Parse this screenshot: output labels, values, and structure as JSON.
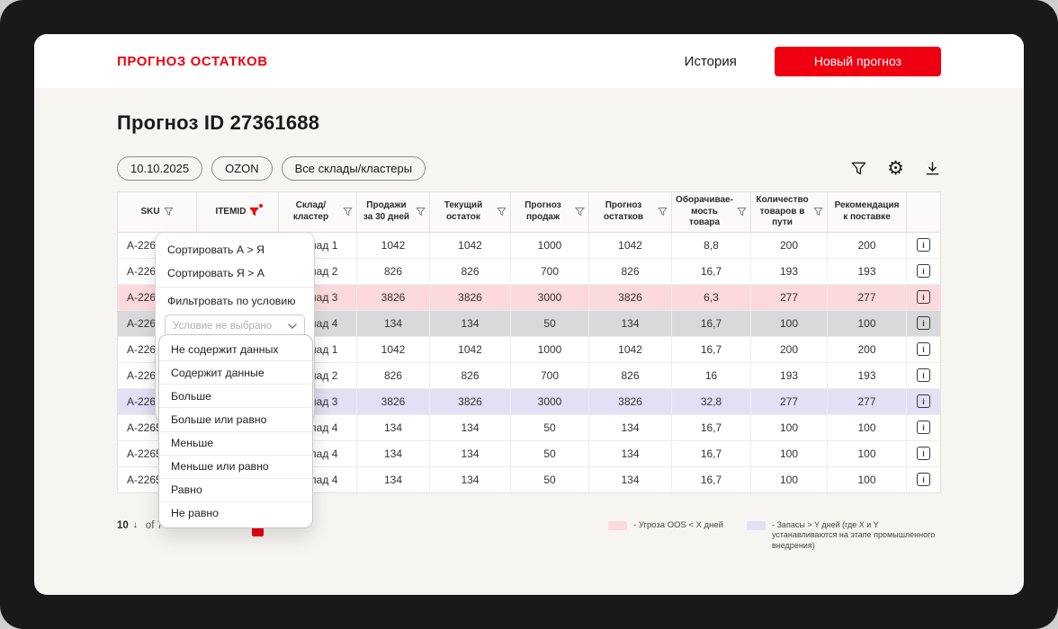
{
  "header": {
    "logo": "ПРОГНОЗ ОСТАТКОВ",
    "history": "История",
    "new_forecast": "Новый прогноз"
  },
  "page": {
    "title": "Прогноз ID 27361688",
    "filter_chips": [
      "10.10.2025",
      "OZON",
      "Все склады/кластеры"
    ]
  },
  "icons": {
    "toolbar": [
      "funnel-icon",
      "gear-icon",
      "download-icon"
    ],
    "gear_glyph": "⚙",
    "row_info": "i"
  },
  "table": {
    "columns": [
      {
        "label": "SKU",
        "filter": true,
        "active": false
      },
      {
        "label": "ITEMID",
        "filter": true,
        "active": true
      },
      {
        "label": "Склад/кластер",
        "filter": true,
        "active": false
      },
      {
        "label": "Продажи за 30 дней",
        "filter": true,
        "active": false
      },
      {
        "label": "Текущий остаток",
        "filter": true,
        "active": false
      },
      {
        "label": "Прогноз продаж",
        "filter": true,
        "active": false
      },
      {
        "label": "Прогноз остатков",
        "filter": true,
        "active": false
      },
      {
        "label": "Оборачивае-мость товара",
        "filter": true,
        "active": false
      },
      {
        "label": "Количество товаров в пути",
        "filter": true,
        "active": false
      },
      {
        "label": "Рекомендация к поставке",
        "filter": false,
        "active": false
      },
      {
        "label": "",
        "filter": false,
        "active": false
      }
    ],
    "rows": [
      {
        "highlight": "",
        "cells": [
          "A-2265",
          "",
          "Склад 1",
          "1042",
          "1042",
          "1000",
          "1042",
          "8,8",
          "200",
          "200"
        ]
      },
      {
        "highlight": "",
        "cells": [
          "A-2265",
          "",
          "Склад 2",
          "826",
          "826",
          "700",
          "826",
          "16,7",
          "193",
          "193"
        ]
      },
      {
        "highlight": "pink",
        "cells": [
          "A-2265",
          "",
          "Склад 3",
          "3826",
          "3826",
          "3000",
          "3826",
          "6,3",
          "277",
          "277"
        ]
      },
      {
        "highlight": "gray",
        "cells": [
          "A-2265",
          "",
          "Склад 4",
          "134",
          "134",
          "50",
          "134",
          "16,7",
          "100",
          "100"
        ]
      },
      {
        "highlight": "",
        "cells": [
          "A-2265",
          "",
          "Склад 1",
          "1042",
          "1042",
          "1000",
          "1042",
          "16,7",
          "200",
          "200"
        ]
      },
      {
        "highlight": "",
        "cells": [
          "A-2265",
          "",
          "Склад 2",
          "826",
          "826",
          "700",
          "826",
          "16",
          "193",
          "193"
        ]
      },
      {
        "highlight": "lavender",
        "cells": [
          "A-2265",
          "",
          "Склад 3",
          "3826",
          "3826",
          "3000",
          "3826",
          "32,8",
          "277",
          "277"
        ]
      },
      {
        "highlight": "",
        "cells": [
          "A-2265",
          "",
          "Склад 4",
          "134",
          "134",
          "50",
          "134",
          "16,7",
          "100",
          "100"
        ]
      },
      {
        "highlight": "",
        "cells": [
          "A-2265",
          "",
          "Склад 4",
          "134",
          "134",
          "50",
          "134",
          "16,7",
          "100",
          "100"
        ]
      },
      {
        "highlight": "",
        "cells": [
          "A-2265",
          "",
          "Склад 4",
          "134",
          "134",
          "50",
          "134",
          "16,7",
          "100",
          "100"
        ]
      }
    ]
  },
  "column_menu": {
    "sort_asc": "Сортировать А > Я",
    "sort_desc": "Сортировать Я > А",
    "filter_label": "Фильтровать по условию",
    "condition_placeholder": "Условие не выбрано",
    "conditions": [
      "Не содержит данных",
      "Содержит данные",
      "Больше",
      "Больше или равно",
      "Меньше",
      "Меньше или равно",
      "Равно",
      "Не равно"
    ]
  },
  "footer": {
    "page_size": "10",
    "range_label": "of 7",
    "legend": [
      {
        "swatch": "#fbd9dc",
        "label": "- Угроза OOS < X дней"
      },
      {
        "swatch": "#e3e0f6",
        "label": "- Запасы > Y дней (где X и Y устанавливаются на этапе промышленного внедрения)"
      }
    ]
  },
  "colors": {
    "accent_red": "#ee0011",
    "row_oos_threat": "#fbd9dc",
    "row_overstock": "#e3e0f6",
    "row_selected": "#d9d9d9"
  }
}
